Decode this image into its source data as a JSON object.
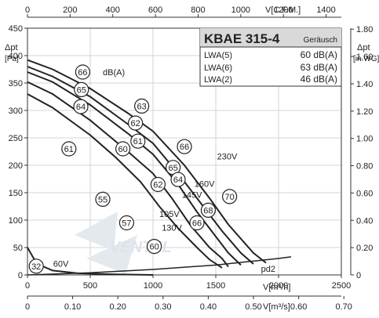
{
  "chart_data": {
    "type": "line",
    "title": "KBAE 315-4",
    "x_axis": {
      "label": "V[m³/h]",
      "min": 0,
      "max": 2500,
      "ticks": [
        0,
        500,
        1000,
        1500,
        2000,
        2500
      ]
    },
    "y_axis": {
      "label_main": "Δpt",
      "label_unit": "[Pa]",
      "min": 0,
      "max": 450,
      "ticks": [
        0,
        50,
        100,
        150,
        200,
        250,
        300,
        350,
        400,
        450
      ]
    },
    "top_axis": {
      "label": "V[C.F.M.]",
      "min": 0,
      "max": 1471.5,
      "ticks": [
        0,
        200,
        400,
        600,
        800,
        1000,
        1200,
        1400
      ]
    },
    "bottom_axis": {
      "label": "V[m³/s]",
      "min": 0,
      "max": 0.6944,
      "ticks": [
        "0",
        "0.10",
        "0.20",
        "0.30",
        "0.40",
        "0.50",
        "0.60",
        "0.70"
      ]
    },
    "right_axis": {
      "label_main": "Δpt",
      "label_unit": "[in.WG]",
      "min": 0,
      "max": 1.807,
      "ticks": [
        "0",
        "0.20",
        "0.40",
        "0.60",
        "0.80",
        "1.00",
        "1.20",
        "1.40",
        "1.60",
        "1.80"
      ]
    },
    "legend": {
      "header": "Geräusch",
      "rows": [
        {
          "label": "LWA(5)",
          "value": "60 dB(A)"
        },
        {
          "label": "LWA(6)",
          "value": "63 dB(A)"
        },
        {
          "label": "LWA(2)",
          "value": "46 dB(A)"
        }
      ]
    },
    "series": [
      {
        "name": "230V",
        "points": [
          [
            0,
            392
          ],
          [
            200,
            375
          ],
          [
            500,
            340
          ],
          [
            800,
            295
          ],
          [
            1000,
            262
          ],
          [
            1250,
            200
          ],
          [
            1450,
            140
          ],
          [
            1600,
            92
          ],
          [
            1800,
            40
          ],
          [
            1900,
            22
          ]
        ],
        "label_at": [
          1510,
          211
        ]
      },
      {
        "name": "160V",
        "points": [
          [
            0,
            380
          ],
          [
            200,
            362
          ],
          [
            500,
            325
          ],
          [
            800,
            275
          ],
          [
            1000,
            240
          ],
          [
            1200,
            185
          ],
          [
            1400,
            125
          ],
          [
            1550,
            80
          ],
          [
            1700,
            40
          ],
          [
            1800,
            20
          ]
        ],
        "label_at": [
          1330,
          161
        ]
      },
      {
        "name": "145V",
        "points": [
          [
            0,
            370
          ],
          [
            200,
            352
          ],
          [
            500,
            310
          ],
          [
            800,
            258
          ],
          [
            1000,
            220
          ],
          [
            1200,
            165
          ],
          [
            1350,
            115
          ],
          [
            1500,
            70
          ],
          [
            1600,
            40
          ],
          [
            1700,
            18
          ]
        ],
        "label_at": [
          1230,
          141
        ]
      },
      {
        "name": "130V",
        "points": [
          [
            0,
            352
          ],
          [
            200,
            330
          ],
          [
            500,
            282
          ],
          [
            800,
            225
          ],
          [
            1000,
            185
          ],
          [
            1150,
            140
          ],
          [
            1300,
            90
          ],
          [
            1450,
            50
          ],
          [
            1550,
            30
          ],
          [
            1600,
            15
          ]
        ],
        "label_at": [
          1070,
          81
        ]
      },
      {
        "name": "105V",
        "points": [
          [
            0,
            330
          ],
          [
            200,
            305
          ],
          [
            500,
            255
          ],
          [
            700,
            215
          ],
          [
            900,
            170
          ],
          [
            1050,
            125
          ],
          [
            1200,
            85
          ],
          [
            1350,
            50
          ],
          [
            1450,
            28
          ],
          [
            1550,
            13
          ]
        ],
        "label_at": [
          1050,
          106
        ]
      },
      {
        "name": "60V",
        "points": [
          [
            0,
            50
          ],
          [
            50,
            30
          ],
          [
            100,
            18
          ],
          [
            200,
            8
          ],
          [
            400,
            3
          ],
          [
            700,
            1
          ],
          [
            1000,
            0
          ]
        ],
        "label_at": [
          205,
          15
        ]
      }
    ],
    "system_line": {
      "name": "pd2",
      "points": [
        [
          0,
          0
        ],
        [
          500,
          4
        ],
        [
          1000,
          10
        ],
        [
          1500,
          18
        ],
        [
          2000,
          30
        ],
        [
          2100,
          33
        ]
      ],
      "label_at": [
        1860,
        6
      ]
    },
    "noise_markers": [
      {
        "label": "66",
        "x": 440,
        "y": 370
      },
      {
        "label": "65",
        "x": 430,
        "y": 338
      },
      {
        "label": "64",
        "x": 425,
        "y": 307
      },
      {
        "label": "63",
        "x": 910,
        "y": 308
      },
      {
        "label": "62",
        "x": 860,
        "y": 277
      },
      {
        "label": "61",
        "x": 880,
        "y": 244
      },
      {
        "label": "61",
        "x": 330,
        "y": 230
      },
      {
        "label": "60",
        "x": 760,
        "y": 230
      },
      {
        "label": "66",
        "x": 1250,
        "y": 234
      },
      {
        "label": "65",
        "x": 1160,
        "y": 196
      },
      {
        "label": "64",
        "x": 1200,
        "y": 174
      },
      {
        "label": "62",
        "x": 1040,
        "y": 165
      },
      {
        "label": "70",
        "x": 1610,
        "y": 143
      },
      {
        "label": "55",
        "x": 600,
        "y": 138
      },
      {
        "label": "68",
        "x": 1440,
        "y": 118
      },
      {
        "label": "57",
        "x": 790,
        "y": 95
      },
      {
        "label": "66",
        "x": 1350,
        "y": 95
      },
      {
        "label": "60",
        "x": 1010,
        "y": 52
      },
      {
        "label": "32",
        "x": 70,
        "y": 16
      }
    ],
    "db_label": {
      "text": "dB(A)",
      "x": 600,
      "y": 370
    },
    "grid": true
  }
}
